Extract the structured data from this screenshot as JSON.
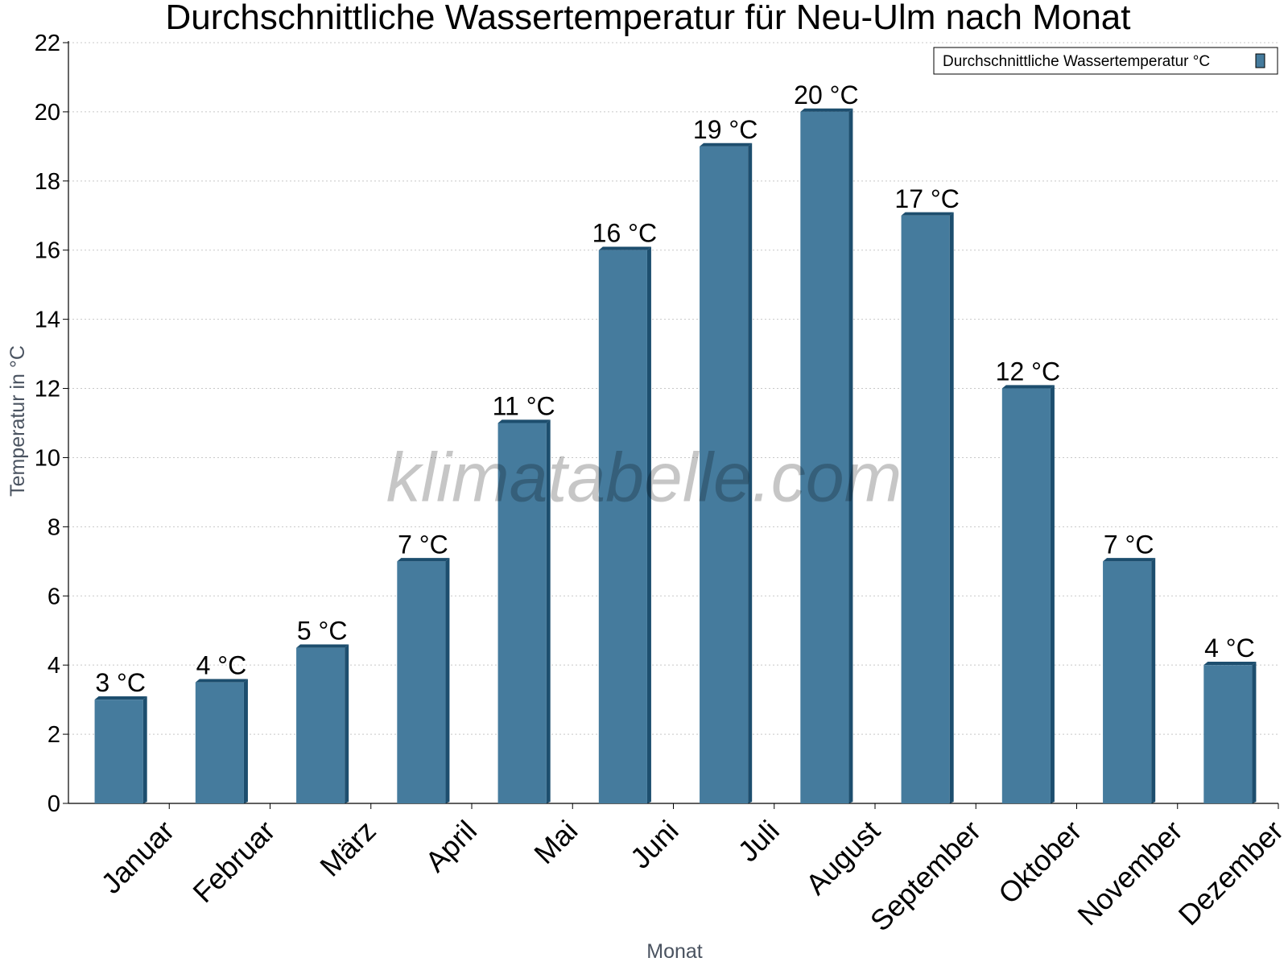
{
  "chart_data": {
    "type": "bar",
    "title": "Durchschnittliche Wassertemperatur für Neu-Ulm nach Monat",
    "xlabel": "Monat",
    "ylabel": "Temperatur in °C",
    "ylim": [
      0,
      22
    ],
    "yticks": [
      0,
      2,
      4,
      6,
      8,
      10,
      12,
      14,
      16,
      18,
      20,
      22
    ],
    "grid": true,
    "legend_position": "top-right",
    "categories": [
      "Januar",
      "Februar",
      "März",
      "April",
      "Mai",
      "Juni",
      "Juli",
      "August",
      "September",
      "Oktober",
      "November",
      "Dezember"
    ],
    "series": [
      {
        "name": "Durchschnittliche Wassertemperatur °C",
        "values": [
          3,
          3.5,
          4.5,
          7,
          11,
          16,
          19,
          20,
          17,
          12,
          7,
          4
        ],
        "labels": [
          "3 °C",
          "4 °C",
          "5 °C",
          "7 °C",
          "11 °C",
          "16 °C",
          "19 °C",
          "20 °C",
          "17 °C",
          "12 °C",
          "7 °C",
          "4 °C"
        ]
      }
    ],
    "colors": {
      "bar": "#457b9d",
      "bar_side": "#1d4e6e",
      "grid": "#c8c8c8"
    },
    "watermark": "klimatabelle.com"
  }
}
